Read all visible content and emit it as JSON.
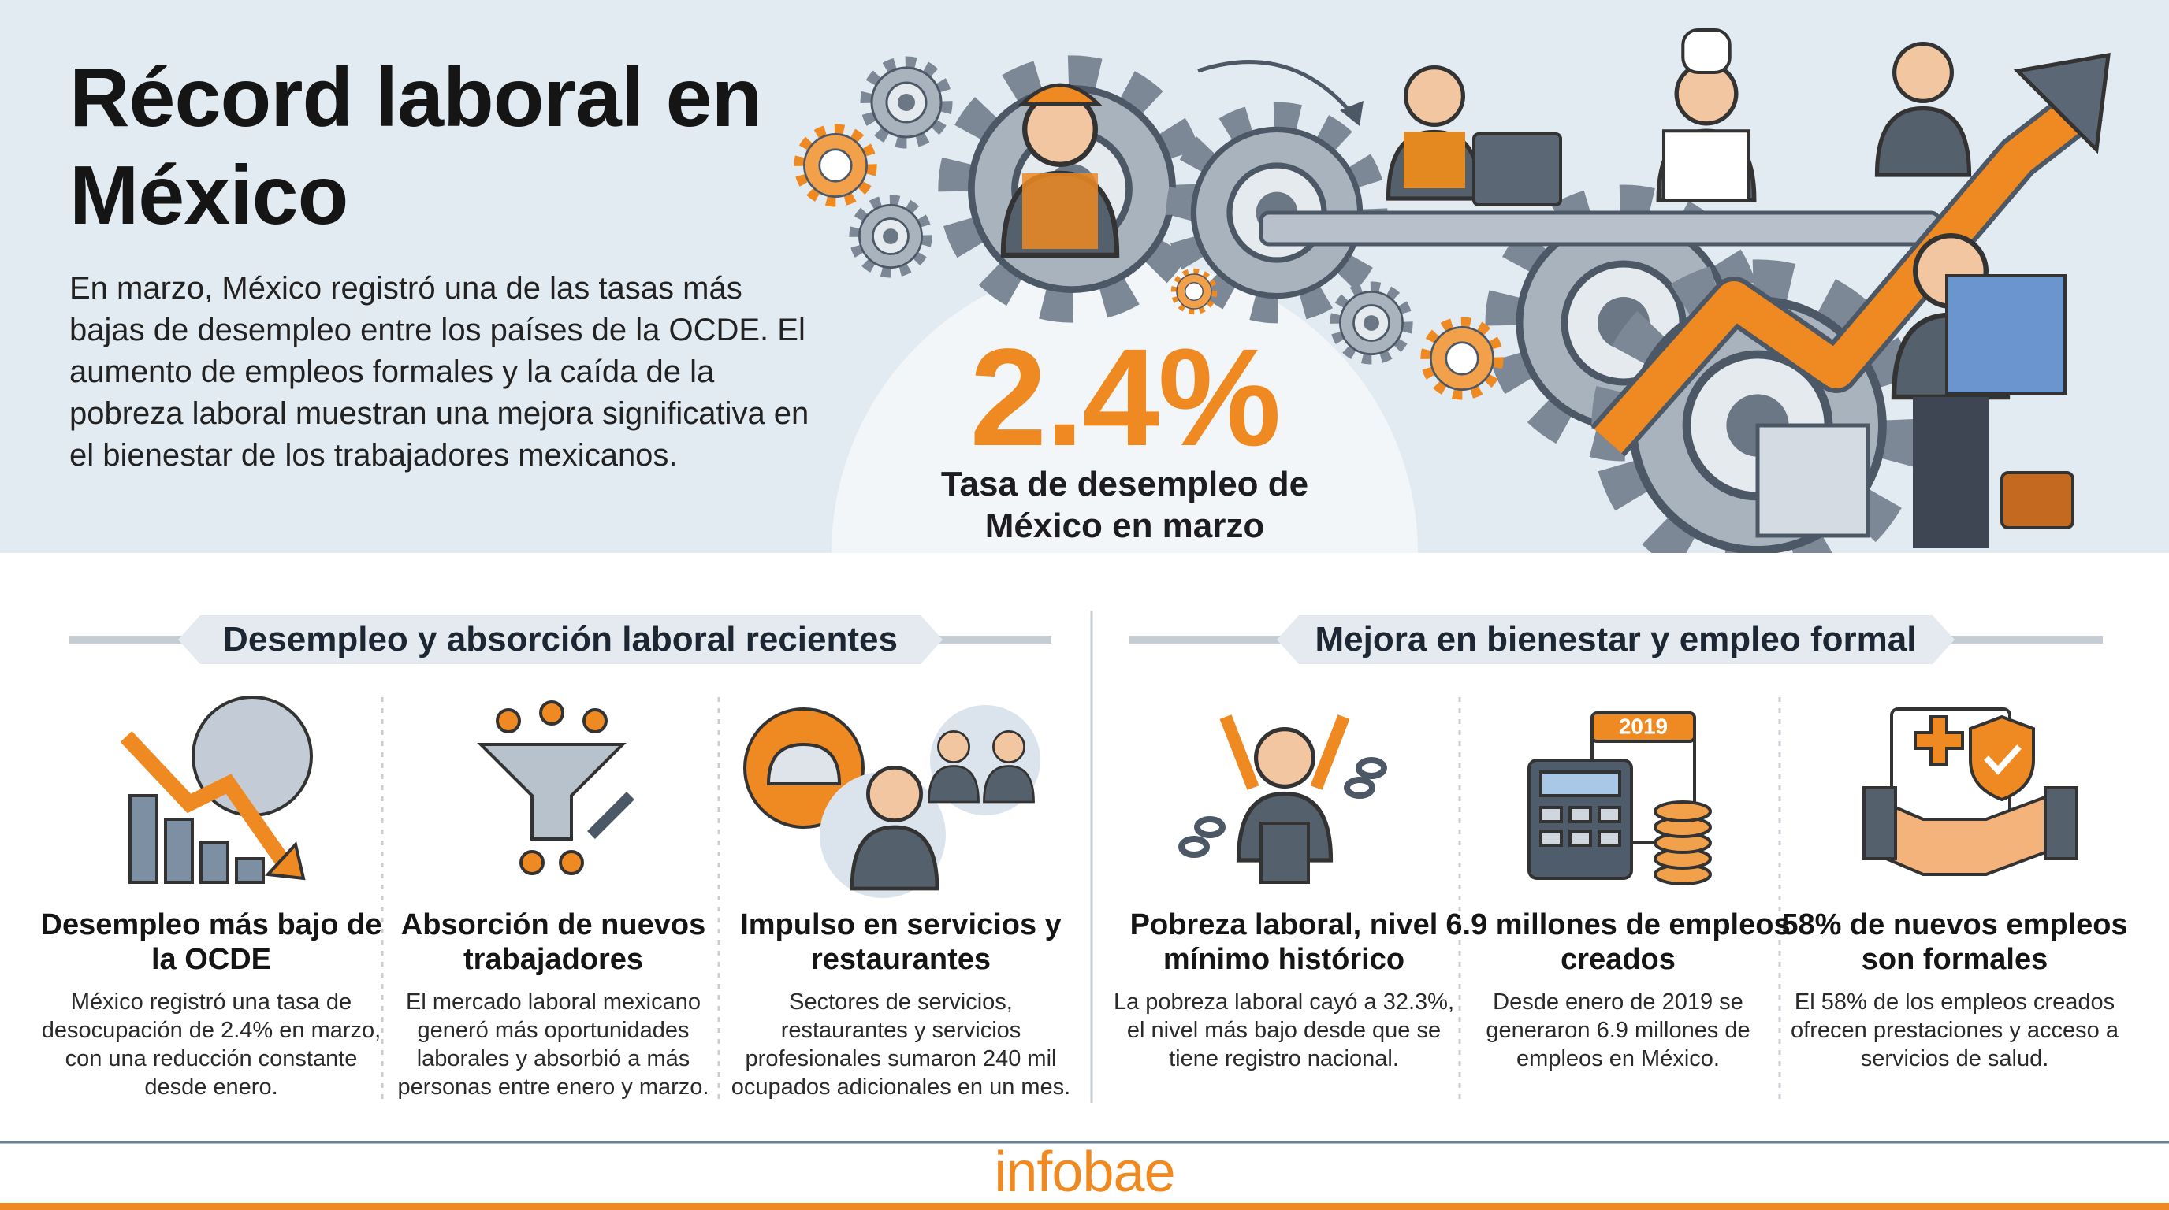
{
  "header": {
    "title": "Récord laboral en México",
    "description": "En marzo, México registró una de las tasas más bajas de desempleo entre los países de la OCDE. El aumento de empleos formales y la caída de la pobreza laboral muestran una mejora significativa en el bienestar de los trabajadores mexicanos.",
    "highlight": {
      "value": "2.4%",
      "label": "Tasa de desempleo de México en marzo"
    }
  },
  "sections": [
    {
      "title": "Desempleo y absorción laboral recientes",
      "cards": [
        {
          "title": "Desempleo más bajo de la OCDE",
          "text": "México registró una tasa de desocupación de 2.4% en marzo, con una reducción constante desde enero."
        },
        {
          "title": "Absorción de nuevos trabajadores",
          "text": "El mercado laboral mexicano generó más oportunidades laborales y absorbió a más personas entre enero y marzo."
        },
        {
          "title": "Impulso en servicios y restaurantes",
          "text": "Sectores de servicios, restaurantes y servicios profesionales sumaron 240 mil ocupados adicionales en un mes."
        }
      ]
    },
    {
      "title": "Mejora en bienestar y empleo formal",
      "cards": [
        {
          "title": "Pobreza laboral, nivel mínimo histórico",
          "text": "La pobreza laboral cayó a 32.3%, el nivel más bajo desde que se tiene registro nacional."
        },
        {
          "title": "6.9 millones de empleos creados",
          "text": "Desde enero de 2019 se generaron 6.9 millones de empleos en México.",
          "icon_text": "2019"
        },
        {
          "title": "58% de nuevos empleos son formales",
          "text": "El 58% de los empleos creados ofrecen prestaciones y acceso a servicios de salud."
        }
      ]
    }
  ],
  "footer": {
    "brand": "infobae"
  }
}
